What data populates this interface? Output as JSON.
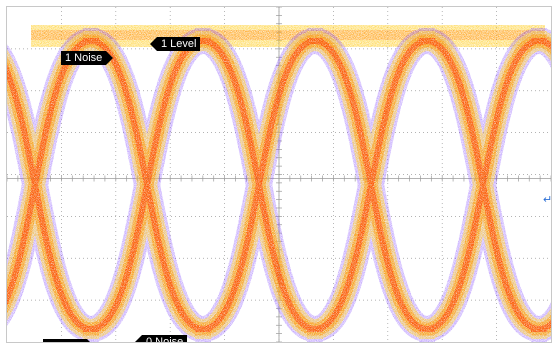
{
  "markers": {
    "one_noise": "1 Noise",
    "one_level": "1 Level",
    "zero_noise": "0 Noise"
  },
  "display": {
    "graticule_divisions_x": 10,
    "graticule_divisions_y": 8,
    "unit_intervals": 4,
    "colors": {
      "core": "#ff3c00",
      "mid": "#ff9a00",
      "outer": "#ffd23a",
      "fringe": "#7a3cff",
      "grid": "#9a9a9a",
      "trigger_marker": "#2b6fd6"
    }
  }
}
